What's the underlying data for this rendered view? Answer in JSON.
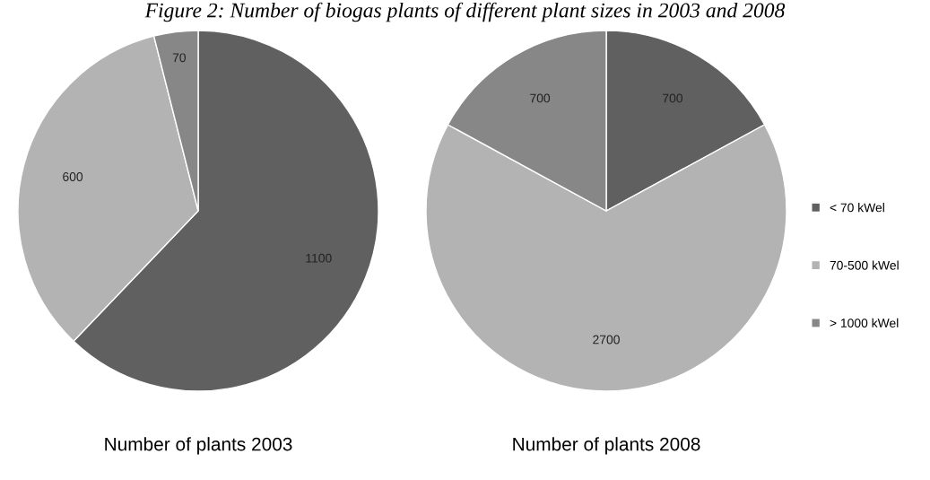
{
  "chart_data": [
    {
      "type": "pie",
      "title": "Figure 2: Number of biogas plants of different plant sizes in 2003 and 2008",
      "xlabel": "Number of plants 2003",
      "categories": [
        "< 70 kWel",
        "70-500 kWel",
        "> 1000 kWel"
      ],
      "values": [
        1100,
        600,
        70
      ],
      "colors": [
        "#606060",
        "#b3b3b3",
        "#878787"
      ],
      "data_labels": true,
      "legend": "right"
    },
    {
      "type": "pie",
      "xlabel": "Number of plants 2008",
      "categories": [
        null,
        null,
        null
      ],
      "values": [
        700,
        2700,
        700
      ],
      "colors": [
        "#606060",
        "#b3b3b3",
        "#878787"
      ],
      "data_labels": true
    }
  ]
}
